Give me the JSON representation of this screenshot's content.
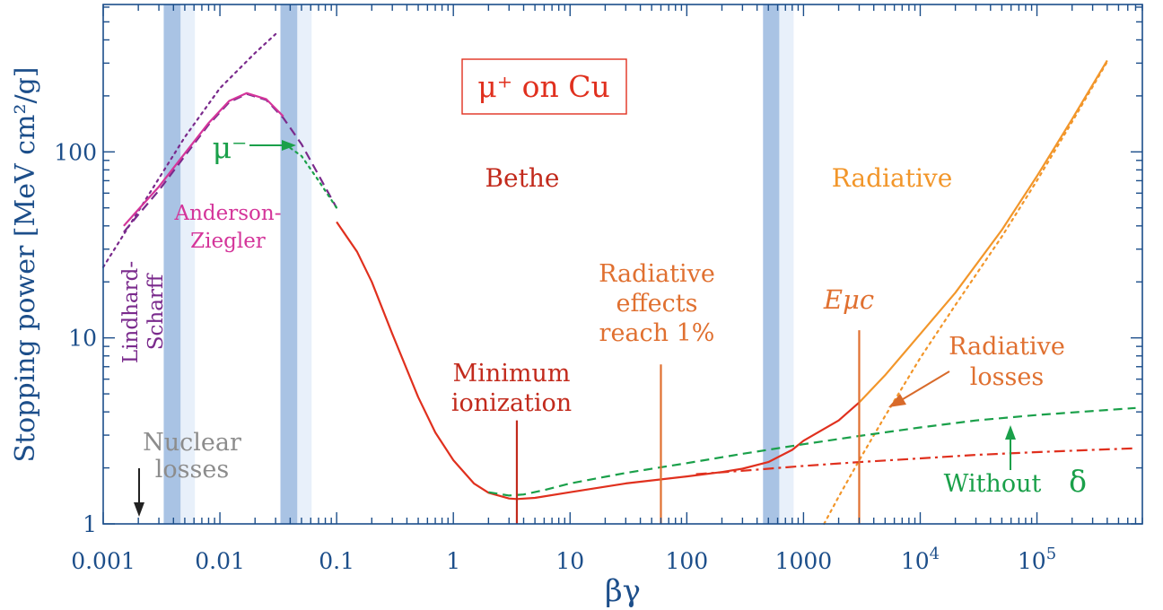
{
  "chart_data": {
    "type": "line",
    "title": "μ⁺ on Cu",
    "xlabel": "βγ",
    "ylabel": "Stopping power [MeV cm²/g]",
    "xscale": "log",
    "yscale": "log",
    "xlim": [
      0.001,
      800000
    ],
    "ylim": [
      1,
      620
    ],
    "x_ticks": [
      {
        "value": 0.001,
        "label": "0.001"
      },
      {
        "value": 0.01,
        "label": "0.01"
      },
      {
        "value": 0.1,
        "label": "0.1"
      },
      {
        "value": 1,
        "label": "1"
      },
      {
        "value": 10,
        "label": "10"
      },
      {
        "value": 100,
        "label": "100"
      },
      {
        "value": 1000,
        "label": "1000"
      },
      {
        "value": 10000,
        "label": "10",
        "exp": "4"
      },
      {
        "value": 100000,
        "label": "10",
        "exp": "5"
      }
    ],
    "y_ticks": [
      {
        "value": 1,
        "label": "1"
      },
      {
        "value": 10,
        "label": "10"
      },
      {
        "value": 100,
        "label": "100"
      }
    ],
    "bands": [
      {
        "x0": 0.0033,
        "x1": 0.0046
      },
      {
        "x0": 0.033,
        "x1": 0.046
      },
      {
        "x0": 450,
        "x1": 620
      }
    ],
    "series": [
      {
        "id": "lindhard",
        "color": "#7a2a8c",
        "style": "dashed",
        "x": [
          0.0015,
          0.002,
          0.003,
          0.005,
          0.008,
          0.012,
          0.017,
          0.025,
          0.035,
          0.05,
          0.07,
          0.1
        ],
        "y": [
          37,
          46,
          62,
          95,
          140,
          185,
          205,
          190,
          152,
          110,
          75,
          50
        ]
      },
      {
        "id": "lindhard-extrapolation",
        "color": "#7a2a8c",
        "style": "dotted",
        "x": [
          0.001,
          0.002,
          0.005,
          0.01,
          0.02,
          0.03
        ],
        "y": [
          24,
          48,
          120,
          220,
          340,
          430
        ]
      },
      {
        "id": "anderson-ziegler",
        "color": "#d4359a",
        "style": "solid",
        "x": [
          0.0015,
          0.002,
          0.003,
          0.005,
          0.008,
          0.012,
          0.017,
          0.025,
          0.035
        ],
        "y": [
          40,
          49,
          65,
          98,
          143,
          188,
          207,
          192,
          155
        ]
      },
      {
        "id": "mu-minus",
        "color": "#1aa04a",
        "style": "dotted",
        "x": [
          0.04,
          0.05,
          0.07,
          0.1
        ],
        "y": [
          105,
          95,
          70,
          50
        ]
      },
      {
        "id": "bethe",
        "color": "#e0301e",
        "style": "solid",
        "x": [
          0.1,
          0.15,
          0.2,
          0.3,
          0.5,
          0.7,
          1,
          1.5,
          2,
          3,
          3.5,
          5,
          10,
          30,
          100,
          200,
          300,
          500,
          800,
          1000,
          2000,
          3000
        ],
        "y": [
          42,
          29,
          20,
          10.5,
          4.8,
          3.1,
          2.2,
          1.65,
          1.47,
          1.37,
          1.36,
          1.38,
          1.48,
          1.65,
          1.8,
          1.9,
          1.98,
          2.15,
          2.5,
          2.8,
          3.6,
          4.5
        ]
      },
      {
        "id": "total",
        "color": "#f2962a",
        "style": "solid",
        "x": [
          3000,
          5000,
          10000,
          20000,
          50000,
          100000,
          200000,
          400000
        ],
        "y": [
          4.5,
          6.3,
          10.5,
          17.5,
          38,
          74,
          150,
          310
        ]
      },
      {
        "id": "radiative-losses",
        "color": "#f2962a",
        "style": "dotted",
        "x": [
          1500,
          2000,
          3000,
          5000,
          10000,
          20000,
          50000,
          100000,
          200000,
          400000
        ],
        "y": [
          1,
          1.4,
          2.2,
          3.8,
          7.8,
          15,
          35,
          70,
          145,
          305
        ]
      },
      {
        "id": "without-delta-dashed",
        "color": "#1aa04a",
        "style": "dashed",
        "x": [
          2,
          3,
          4,
          6,
          10,
          30,
          100,
          300,
          1000,
          3000,
          10000,
          30000,
          100000,
          700000
        ],
        "y": [
          1.48,
          1.42,
          1.44,
          1.52,
          1.65,
          1.88,
          2.12,
          2.38,
          2.68,
          2.97,
          3.3,
          3.6,
          3.85,
          4.2
        ]
      },
      {
        "id": "without-delta-dashdot",
        "color": "#e0301e",
        "style": "dashdot",
        "x": [
          120,
          300,
          1000,
          3000,
          10000,
          30000,
          100000,
          300000,
          700000
        ],
        "y": [
          1.85,
          1.93,
          2.05,
          2.15,
          2.25,
          2.35,
          2.43,
          2.5,
          2.55
        ]
      }
    ],
    "markers": [
      {
        "id": "minimum-ionization",
        "x": 3.5,
        "y_top": 3.6,
        "color": "#c22a1c"
      },
      {
        "id": "radiative-1-percent",
        "x": 60,
        "y_top": 7.2,
        "color": "#e07030"
      },
      {
        "id": "e-mu-c",
        "x": 3000,
        "y_top": 11,
        "color": "#e07030"
      }
    ],
    "annotations": {
      "bethe": "Bethe",
      "radiative": "Radiative",
      "anderson": "Anderson-",
      "ziegler": "Ziegler",
      "lindhard": "Lindhard-",
      "scharff": "Scharff",
      "nuclear": "Nuclear",
      "losses": "losses",
      "min1": "Minimum",
      "min2": "ionization",
      "rad1": "Radiative",
      "rad2": "effects",
      "rad3": "reach 1%",
      "emuc": "Eμc",
      "radloss1": "Radiative",
      "radloss2": "losses",
      "without": "Without",
      "delta": "δ",
      "mu_minus": "μ⁻"
    },
    "colors": {
      "axis": "#1c4e8a",
      "band": "#a9c3e4",
      "band_light": "#e8f0fa",
      "title_box": "#e0301e"
    }
  }
}
